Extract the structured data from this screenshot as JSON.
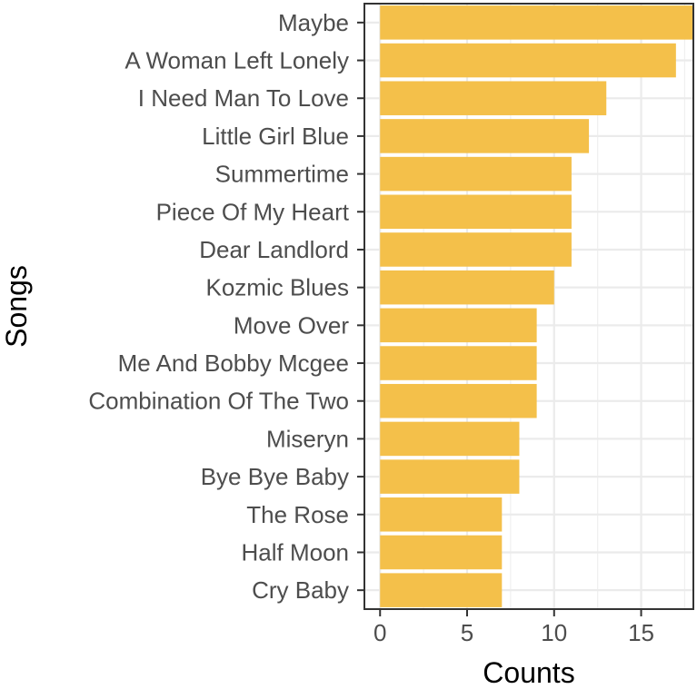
{
  "chart_data": {
    "type": "bar",
    "orientation": "horizontal",
    "xlabel": "Counts",
    "ylabel": "Songs",
    "xlim": [
      -0.9,
      18.0
    ],
    "xticks": [
      0,
      5,
      10,
      15
    ],
    "grid": true,
    "bar_color": "#F4C04A",
    "categories": [
      "Maybe",
      "A Woman Left Lonely",
      "I Need Man To Love",
      "Little Girl Blue",
      "Summertime",
      "Piece Of My Heart",
      "Dear Landlord",
      "Kozmic Blues",
      "Move Over",
      "Me And Bobby Mcgee",
      "Combination Of The Two",
      "Miseryn",
      "Bye Bye Baby",
      "The Rose",
      "Half Moon",
      "Cry Baby"
    ],
    "values": [
      18,
      17,
      13,
      12,
      11,
      11,
      11,
      10,
      9,
      9,
      9,
      8,
      8,
      7,
      7,
      7
    ]
  }
}
